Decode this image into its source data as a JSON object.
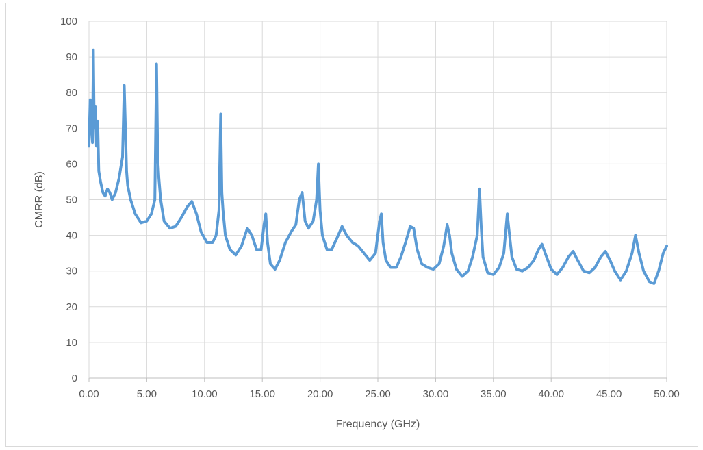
{
  "chart_data": {
    "type": "line",
    "xlabel": "Frequency (GHz)",
    "ylabel": "CMRR (dB)",
    "xlim": [
      0,
      50
    ],
    "ylim": [
      0,
      100
    ],
    "x_ticks": [
      "0.00",
      "5.00",
      "10.00",
      "15.00",
      "20.00",
      "25.00",
      "30.00",
      "35.00",
      "40.00",
      "45.00",
      "50.00"
    ],
    "y_ticks": [
      "0",
      "10",
      "20",
      "30",
      "40",
      "50",
      "60",
      "70",
      "80",
      "90",
      "100"
    ],
    "grid": true,
    "legend": "none",
    "series": [
      {
        "color": "#5b9bd5",
        "x": [
          0.0,
          0.1,
          0.2,
          0.3,
          0.38,
          0.45,
          0.55,
          0.65,
          0.75,
          0.85,
          1.0,
          1.2,
          1.4,
          1.6,
          1.8,
          2.0,
          2.3,
          2.6,
          2.9,
          3.05,
          3.15,
          3.25,
          3.35,
          3.6,
          4.0,
          4.5,
          5.0,
          5.4,
          5.7,
          5.85,
          5.95,
          6.05,
          6.2,
          6.5,
          7.0,
          7.5,
          8.0,
          8.5,
          8.9,
          9.3,
          9.7,
          10.2,
          10.7,
          11.0,
          11.25,
          11.4,
          11.5,
          11.6,
          11.8,
          12.2,
          12.7,
          13.2,
          13.7,
          14.1,
          14.5,
          14.9,
          15.15,
          15.3,
          15.45,
          15.7,
          16.1,
          16.5,
          17.0,
          17.5,
          17.9,
          18.2,
          18.45,
          18.7,
          19.0,
          19.4,
          19.7,
          19.85,
          20.0,
          20.2,
          20.6,
          21.0,
          21.5,
          21.9,
          22.3,
          22.8,
          23.3,
          23.8,
          24.3,
          24.8,
          25.15,
          25.3,
          25.45,
          25.7,
          26.1,
          26.6,
          27.0,
          27.4,
          27.8,
          28.1,
          28.4,
          28.8,
          29.3,
          29.8,
          30.3,
          30.7,
          31.0,
          31.2,
          31.4,
          31.8,
          32.3,
          32.8,
          33.2,
          33.6,
          33.8,
          33.95,
          34.1,
          34.5,
          35.0,
          35.5,
          35.9,
          36.2,
          36.4,
          36.6,
          37.0,
          37.5,
          38.0,
          38.5,
          38.9,
          39.2,
          39.6,
          40.0,
          40.5,
          41.0,
          41.5,
          41.9,
          42.3,
          42.8,
          43.3,
          43.8,
          44.3,
          44.7,
          45.1,
          45.5,
          46.0,
          46.5,
          47.0,
          47.3,
          47.6,
          48.0,
          48.5,
          48.9,
          49.3,
          49.7,
          50.0
        ],
        "values": [
          65,
          78,
          72,
          66,
          92,
          70,
          76,
          65,
          72,
          58,
          55,
          52,
          51,
          53,
          52,
          50,
          52,
          56,
          62,
          82,
          70,
          58,
          54,
          50,
          46,
          43.5,
          44,
          46,
          50,
          88,
          62,
          56,
          50,
          44,
          42,
          42.5,
          45,
          48,
          49.5,
          46,
          41,
          38,
          38,
          40,
          47,
          74,
          52,
          47,
          40,
          36,
          34.5,
          37,
          42,
          40,
          36,
          36,
          43,
          46,
          38,
          32,
          30.5,
          33,
          38,
          41,
          43,
          50,
          52,
          44,
          42,
          44,
          50,
          60,
          47,
          40,
          36,
          36,
          39.5,
          42.5,
          40,
          38,
          37,
          35,
          33,
          35,
          44,
          46,
          38,
          33,
          31,
          31,
          34,
          38,
          42.5,
          42,
          36,
          32,
          31,
          30.5,
          32,
          37,
          43,
          40,
          35,
          30.5,
          28.5,
          30,
          34,
          40,
          53,
          42,
          34,
          29.5,
          29,
          31,
          35,
          46,
          40,
          34,
          30.5,
          30,
          31,
          33,
          36,
          37.5,
          34,
          30.5,
          29,
          31,
          34,
          35.5,
          33,
          30,
          29.5,
          31,
          34,
          35.5,
          33,
          30,
          27.5,
          30,
          35,
          40,
          35,
          30,
          27,
          26.5,
          30,
          35,
          37
        ]
      }
    ]
  }
}
